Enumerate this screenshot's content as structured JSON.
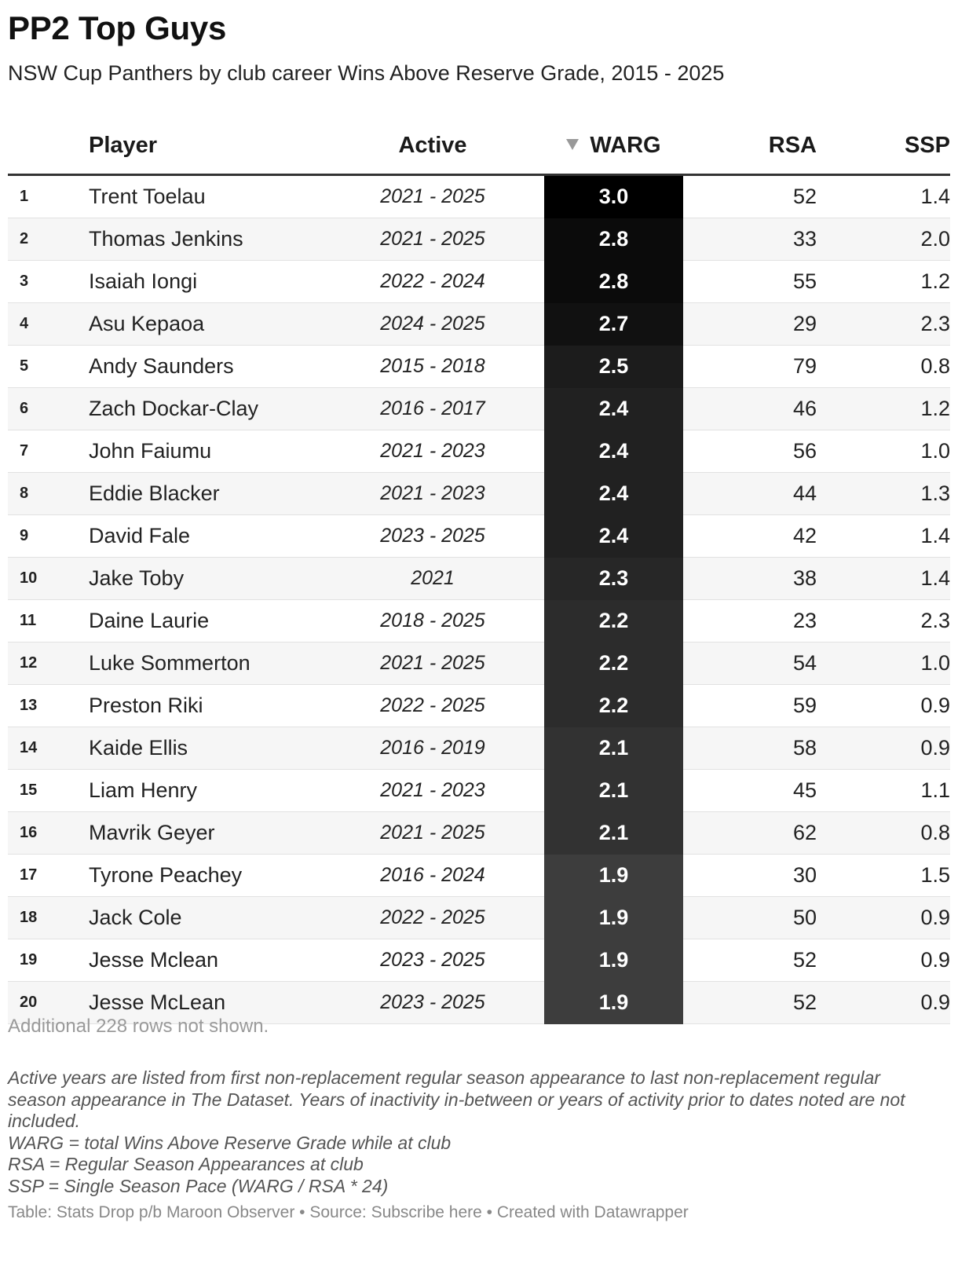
{
  "title": "PP2 Top Guys",
  "subtitle": "NSW Cup Panthers by club career Wins Above Reserve Grade, 2015 - 2025",
  "columns": {
    "player": "Player",
    "active": "Active",
    "warg": "WARG",
    "rsa": "RSA",
    "ssp": "SSP"
  },
  "sorted_column": "WARG",
  "sort_direction": "descending",
  "warg_shading": {
    "high_color": "#000000",
    "low_color": "#3d3d3d",
    "max": 3.0,
    "min": 1.9
  },
  "rows": [
    {
      "rank": "1",
      "player": "Trent Toelau",
      "active": "2021 - 2025",
      "warg": "3.0",
      "rsa": "52",
      "ssp": "1.4"
    },
    {
      "rank": "2",
      "player": "Thomas Jenkins",
      "active": "2021 - 2025",
      "warg": "2.8",
      "rsa": "33",
      "ssp": "2.0"
    },
    {
      "rank": "3",
      "player": "Isaiah Iongi",
      "active": "2022 - 2024",
      "warg": "2.8",
      "rsa": "55",
      "ssp": "1.2"
    },
    {
      "rank": "4",
      "player": "Asu Kepaoa",
      "active": "2024 - 2025",
      "warg": "2.7",
      "rsa": "29",
      "ssp": "2.3"
    },
    {
      "rank": "5",
      "player": "Andy Saunders",
      "active": "2015 - 2018",
      "warg": "2.5",
      "rsa": "79",
      "ssp": "0.8"
    },
    {
      "rank": "6",
      "player": "Zach Dockar-Clay",
      "active": "2016 - 2017",
      "warg": "2.4",
      "rsa": "46",
      "ssp": "1.2"
    },
    {
      "rank": "7",
      "player": "John Faiumu",
      "active": "2021 - 2023",
      "warg": "2.4",
      "rsa": "56",
      "ssp": "1.0"
    },
    {
      "rank": "8",
      "player": "Eddie Blacker",
      "active": "2021 - 2023",
      "warg": "2.4",
      "rsa": "44",
      "ssp": "1.3"
    },
    {
      "rank": "9",
      "player": "David Fale",
      "active": "2023 - 2025",
      "warg": "2.4",
      "rsa": "42",
      "ssp": "1.4"
    },
    {
      "rank": "10",
      "player": "Jake Toby",
      "active": "2021",
      "warg": "2.3",
      "rsa": "38",
      "ssp": "1.4"
    },
    {
      "rank": "11",
      "player": "Daine Laurie",
      "active": "2018 - 2025",
      "warg": "2.2",
      "rsa": "23",
      "ssp": "2.3"
    },
    {
      "rank": "12",
      "player": "Luke Sommerton",
      "active": "2021 - 2025",
      "warg": "2.2",
      "rsa": "54",
      "ssp": "1.0"
    },
    {
      "rank": "13",
      "player": "Preston Riki",
      "active": "2022 - 2025",
      "warg": "2.2",
      "rsa": "59",
      "ssp": "0.9"
    },
    {
      "rank": "14",
      "player": "Kaide Ellis",
      "active": "2016 - 2019",
      "warg": "2.1",
      "rsa": "58",
      "ssp": "0.9"
    },
    {
      "rank": "15",
      "player": "Liam Henry",
      "active": "2021 - 2023",
      "warg": "2.1",
      "rsa": "45",
      "ssp": "1.1"
    },
    {
      "rank": "16",
      "player": "Mavrik Geyer",
      "active": "2021 - 2025",
      "warg": "2.1",
      "rsa": "62",
      "ssp": "0.8"
    },
    {
      "rank": "17",
      "player": "Tyrone Peachey",
      "active": "2016 - 2024",
      "warg": "1.9",
      "rsa": "30",
      "ssp": "1.5"
    },
    {
      "rank": "18",
      "player": "Jack Cole",
      "active": "2022 - 2025",
      "warg": "1.9",
      "rsa": "50",
      "ssp": "0.9"
    },
    {
      "rank": "19",
      "player": "Jesse Mclean",
      "active": "2023 - 2025",
      "warg": "1.9",
      "rsa": "52",
      "ssp": "0.9"
    },
    {
      "rank": "20",
      "player": "Jesse McLean",
      "active": "2023 - 2025",
      "warg": "1.9",
      "rsa": "52",
      "ssp": "0.9"
    }
  ],
  "not_shown": "Additional 228 rows not shown.",
  "notes": [
    "Active years are listed from first non-replacement regular season appearance to last non-replacement regular season appearance in The Dataset. Years of inactivity in-between or years of activity prior to dates noted are not included.",
    "WARG = total Wins Above Reserve Grade while at club",
    "RSA = Regular Season Appearances at club",
    "SSP = Single Season Pace (WARG / RSA * 24)"
  ],
  "footer": "Table: Stats Drop p/b Maroon Observer • Source: Subscribe here • Created with Datawrapper"
}
